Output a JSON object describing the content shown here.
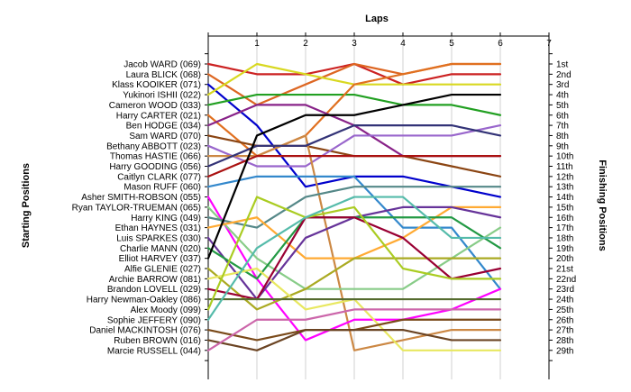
{
  "chart_data": {
    "type": "line",
    "title": "Laps",
    "ylabel_left": "Starting Positions",
    "ylabel_right": "Finishing Positions",
    "x_ticks": [
      "1",
      "2",
      "3",
      "4",
      "5",
      "6",
      "7"
    ],
    "grid": true,
    "starting_names": [
      "Jacob WARD (069)",
      "Laura BLICK (068)",
      "Klass KOOIKER (071)",
      "Yukinori ISHII (022)",
      "Cameron WOOD (033)",
      "Harry CARTER (021)",
      "Ben HODGE (034)",
      "Sam WARD (070)",
      "Bethany ABBOTT (023)",
      "Thomas HASTIE (066)",
      "Harry GOODING (056)",
      "Caitlyn CLARK (077)",
      "Mason RUFF (060)",
      "Asher SMITH-ROBSON (055)",
      "Ryan TAYLOR-TRUEMAN (065)",
      "Harry KING (049)",
      "Ethan HAYNES (031)",
      "Luis SPARKES (030)",
      "Charlie MANN (020)",
      "Elliot HARVEY (037)",
      "Alfie GLENIE (027)",
      "Archie BARROW (081)",
      "Brandon LOVELL (029)",
      "Harry Newman-Oakley (086)",
      "Alex Moody (099)",
      "Sophie JEFFERY (090)",
      "Daniel MACKINTOSH (076)",
      "Ruben BROWN (016)",
      "Marcie RUSSELL (044)"
    ],
    "finishing_positions": [
      "1st",
      "2nd",
      "3rd",
      "4th",
      "5th",
      "6th",
      "7th",
      "8th",
      "9th",
      "10th",
      "11th",
      "12th",
      "13th",
      "14th",
      "15th",
      "16th",
      "17th",
      "18th",
      "19th",
      "20th",
      "21st",
      "22nd",
      "23rd",
      "24th",
      "25th",
      "26th",
      "27th",
      "28th",
      "29th"
    ],
    "series": [
      {
        "color": "#cc2222",
        "positions": [
          1,
          2,
          2,
          1,
          3,
          2,
          2
        ]
      },
      {
        "color": "#dd6622",
        "positions": [
          2,
          5,
          3,
          1,
          2,
          1,
          1
        ]
      },
      {
        "color": "#0000cc",
        "positions": [
          3,
          7,
          13,
          12,
          12,
          13,
          14
        ]
      },
      {
        "color": "#d8d820",
        "positions": [
          4,
          1,
          2,
          3,
          3,
          3,
          3
        ]
      },
      {
        "color": "#22a022",
        "positions": [
          5,
          4,
          4,
          4,
          5,
          5,
          6
        ]
      },
      {
        "color": "#e07020",
        "positions": [
          6,
          10,
          8,
          3,
          2,
          1,
          1
        ]
      },
      {
        "color": "#882288",
        "positions": [
          7,
          5,
          5,
          7,
          10,
          10,
          10
        ]
      },
      {
        "color": "#8b4513",
        "positions": [
          8,
          9,
          9,
          10,
          10,
          11,
          12
        ]
      },
      {
        "color": "#9966cc",
        "positions": [
          9,
          11,
          11,
          8,
          8,
          8,
          7
        ]
      },
      {
        "color": "#cc8844",
        "positions": [
          10,
          10,
          8,
          29,
          28,
          27,
          27
        ]
      },
      {
        "color": "#333377",
        "positions": [
          11,
          9,
          9,
          7,
          7,
          7,
          8
        ]
      },
      {
        "color": "#aa1111",
        "positions": [
          12,
          10,
          10,
          10,
          10,
          10,
          10
        ]
      },
      {
        "color": "#3388cc",
        "positions": [
          13,
          12,
          12,
          12,
          17,
          17,
          23
        ]
      },
      {
        "color": "#ff00ff",
        "positions": [
          14,
          22,
          28,
          26,
          26,
          25,
          23
        ]
      },
      {
        "color": "#88cc88",
        "positions": [
          15,
          20,
          23,
          23,
          23,
          20,
          17
        ]
      },
      {
        "color": "#558888",
        "positions": [
          16,
          17,
          14,
          13,
          13,
          13,
          13
        ]
      },
      {
        "color": "#ffaa33",
        "positions": [
          17,
          16,
          20,
          20,
          18,
          15,
          15
        ]
      },
      {
        "color": "#663399",
        "positions": [
          18,
          24,
          18,
          16,
          15,
          15,
          16
        ]
      },
      {
        "color": "#229944",
        "positions": [
          19,
          22,
          16,
          16,
          16,
          16,
          19
        ]
      },
      {
        "color": "#000000",
        "positions": [
          20,
          8,
          6,
          6,
          5,
          4,
          4
        ]
      },
      {
        "color": "#aaaa22",
        "positions": [
          21,
          25,
          23,
          20,
          20,
          20,
          20
        ]
      },
      {
        "color": "#e8e860",
        "positions": [
          22,
          21,
          25,
          24,
          29,
          29,
          29
        ]
      },
      {
        "color": "#990033",
        "positions": [
          23,
          24,
          16,
          16,
          18,
          22,
          21
        ]
      },
      {
        "color": "#556b2f",
        "positions": [
          24,
          24,
          24,
          24,
          24,
          24,
          24
        ]
      },
      {
        "color": "#aacc22",
        "positions": [
          25,
          14,
          16,
          15,
          21,
          22,
          22
        ]
      },
      {
        "color": "#55bbaa",
        "positions": [
          26,
          19,
          16,
          14,
          14,
          18,
          18
        ]
      },
      {
        "color": "#7a4a1a",
        "positions": [
          27,
          28,
          27,
          27,
          26,
          26,
          26
        ]
      },
      {
        "color": "#6b4423",
        "positions": [
          28,
          29,
          27,
          27,
          27,
          28,
          28
        ]
      },
      {
        "color": "#cc66aa",
        "positions": [
          29,
          26,
          26,
          25,
          25,
          25,
          25
        ]
      }
    ]
  }
}
